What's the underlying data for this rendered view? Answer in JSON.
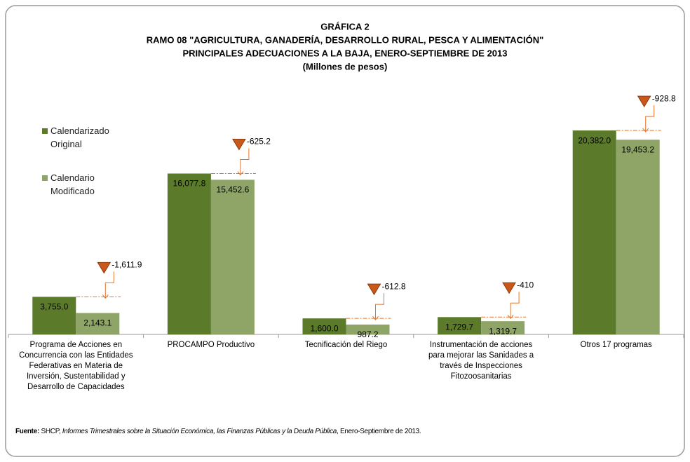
{
  "chart_data": {
    "type": "bar",
    "title_lines": [
      "GRÁFICA 2",
      "RAMO 08 \"AGRICULTURA, GANADERÍA, DESARROLLO RURAL, PESCA Y ALIMENTACIÓN\"",
      "PRINCIPALES ADECUACIONES A LA BAJA, ENERO-SEPTIEMBRE DE 2013",
      "(Millones de pesos)"
    ],
    "categories": [
      "Programa de Acciones en\nConcurrencia con las Entidades\nFederativas en Materia de\nInversión, Sustentabilidad y\nDesarrollo de Capacidades",
      "PROCAMPO Productivo",
      "Tecnificación del Riego",
      "Instrumentación de acciones\npara mejorar las Sanidades a\ntravés de Inspecciones\nFitozoosanitarias",
      "Otros 17 programas"
    ],
    "series": [
      {
        "name": "Calendarizado\nOriginal",
        "color": "#5b7b2b",
        "values": [
          3755.0,
          16077.8,
          1600.0,
          1729.7,
          20382.0
        ],
        "value_labels": [
          "3,755.0",
          "16,077.8",
          "1,600.0",
          "1,729.7",
          "20,382.0"
        ]
      },
      {
        "name": "Calendario\nModificado",
        "color": "#8ea567",
        "values": [
          2143.1,
          15452.6,
          987.2,
          1319.7,
          19453.2
        ],
        "value_labels": [
          "2,143.1",
          "15,452.6",
          "987.2",
          "1,319.7",
          "19,453.2"
        ]
      }
    ],
    "annotations": [
      "-1,611.9",
      "-625.2",
      "-612.8",
      "-410",
      "-928.8"
    ],
    "ylim": [
      0,
      22000
    ],
    "legend": "upper left",
    "source": {
      "label": "Fuente:",
      "org": "SHCP,",
      "title": "Informes Trimestrales sobre la Situación Económica, las Finanzas Públicas y la Deuda Pública",
      "date": ", Enero-Septiembre de 2013."
    }
  }
}
